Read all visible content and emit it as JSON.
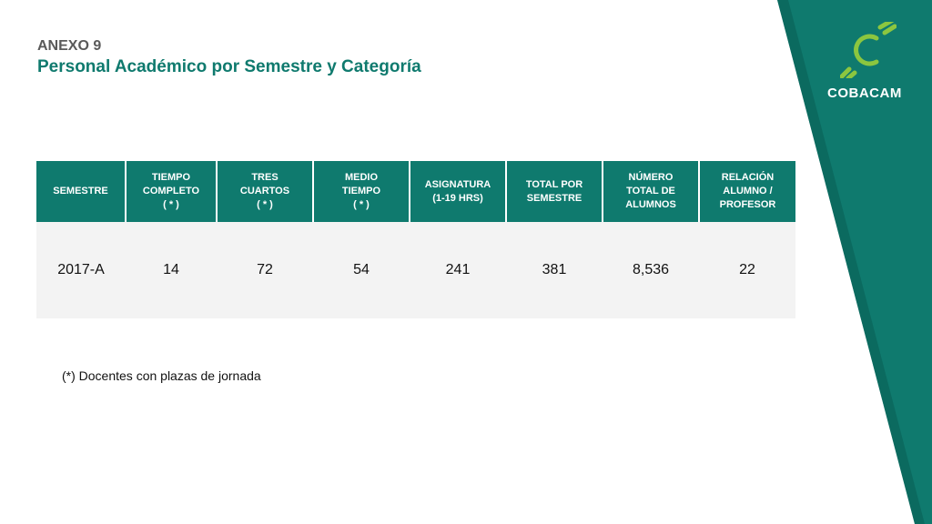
{
  "slide": {
    "kicker": "ANEXO 9",
    "title": "Personal Académico por Semestre y Categoría"
  },
  "logo": {
    "brand": "COBACAM",
    "icon": "cobacam-c-logo-icon",
    "mark_color": "#8cc63f"
  },
  "colors": {
    "accent": "#0f7a6e",
    "band": "#0f7a6e",
    "row_bg": "#f3f3f3"
  },
  "table": {
    "headers": [
      "SEMESTRE",
      "TIEMPO\nCOMPLETO\n( * )",
      "TRES\nCUARTOS\n( * )",
      "MEDIO\nTIEMPO\n( * )",
      "ASIGNATURA\n(1-19 HRS)",
      "TOTAL POR\nSEMESTRE",
      "NÚMERO\nTOTAL DE\nALUMNOS",
      "RELACIÓN\nALUMNO /\nPROFESOR"
    ],
    "rows": [
      [
        "2017-A",
        "14",
        "72",
        "54",
        "241",
        "381",
        "8,536",
        "22"
      ]
    ]
  },
  "footnote": "(*) Docentes con plazas de jornada"
}
